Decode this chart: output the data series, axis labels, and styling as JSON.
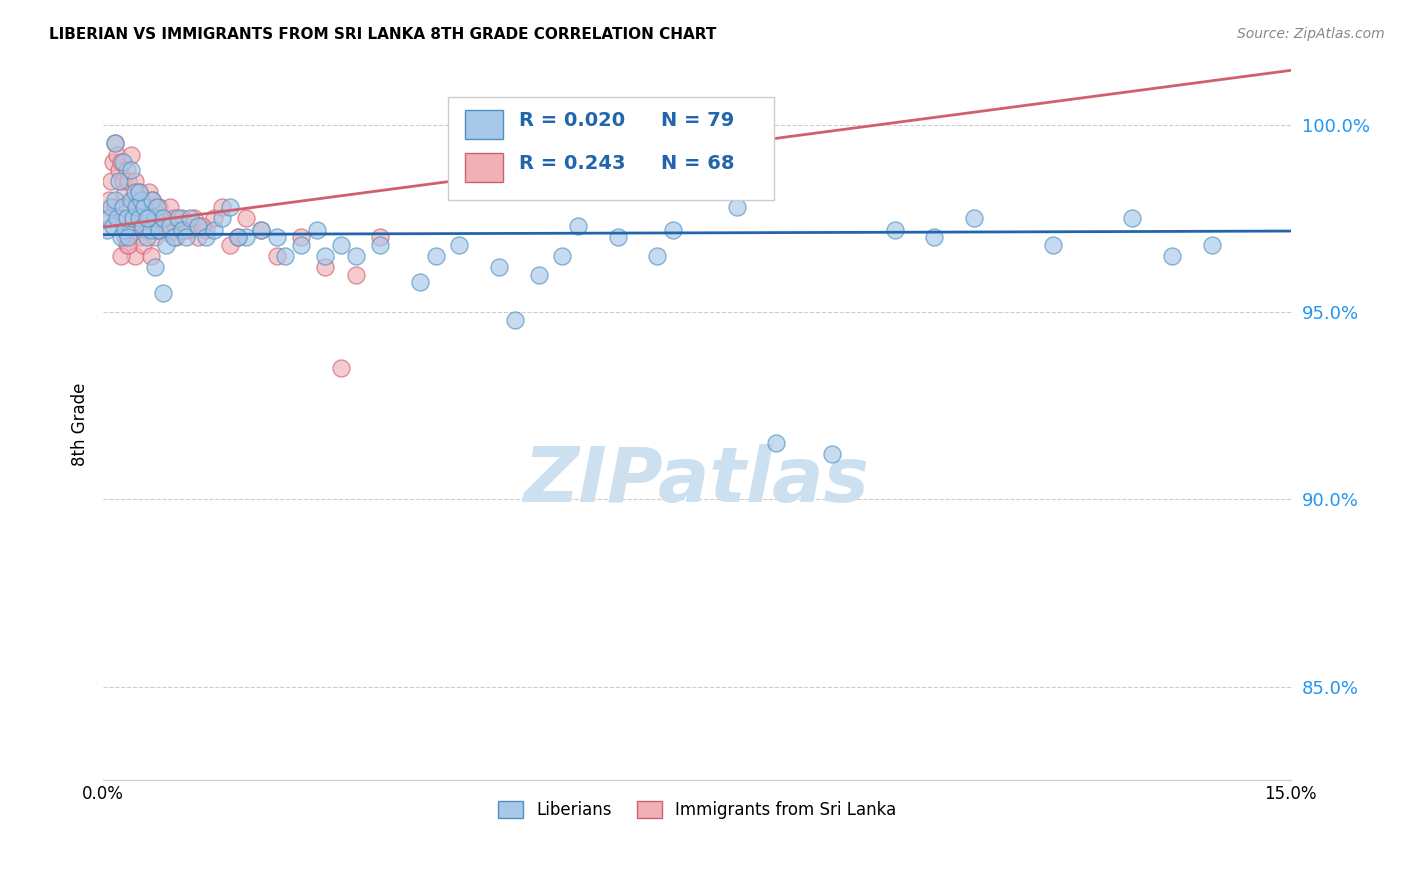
{
  "title": "LIBERIAN VS IMMIGRANTS FROM SRI LANKA 8TH GRADE CORRELATION CHART",
  "source": "Source: ZipAtlas.com",
  "ylabel": "8th Grade",
  "yticks": [
    85.0,
    90.0,
    95.0,
    100.0
  ],
  "xlim": [
    0.0,
    15.0
  ],
  "ylim": [
    82.5,
    101.5
  ],
  "legend_label1": "Liberians",
  "legend_label2": "Immigrants from Sri Lanka",
  "color_blue": "#a8c8e8",
  "color_pink": "#f0b0b8",
  "edge_blue": "#5090c0",
  "edge_pink": "#d06070",
  "trendline_blue": "#2166ac",
  "trendline_pink": "#d06070",
  "blue_x": [
    0.05,
    0.08,
    0.1,
    0.12,
    0.15,
    0.18,
    0.2,
    0.22,
    0.25,
    0.28,
    0.3,
    0.32,
    0.35,
    0.38,
    0.4,
    0.42,
    0.45,
    0.48,
    0.5,
    0.52,
    0.55,
    0.58,
    0.6,
    0.62,
    0.65,
    0.68,
    0.7,
    0.75,
    0.8,
    0.85,
    0.9,
    0.95,
    1.0,
    1.05,
    1.1,
    1.2,
    1.3,
    1.4,
    1.5,
    1.6,
    1.8,
    2.0,
    2.2,
    2.5,
    2.8,
    3.0,
    3.2,
    3.5,
    4.0,
    4.2,
    4.5,
    5.0,
    5.2,
    5.5,
    5.8,
    6.0,
    6.5,
    7.0,
    7.2,
    8.0,
    8.5,
    9.2,
    10.0,
    10.5,
    11.0,
    12.0,
    13.0,
    13.5,
    14.0,
    1.7,
    2.3,
    2.7,
    0.15,
    0.25,
    0.35,
    0.45,
    0.55,
    0.65,
    0.75
  ],
  "blue_y": [
    97.2,
    97.5,
    97.8,
    97.3,
    98.0,
    97.5,
    98.5,
    97.0,
    97.8,
    97.2,
    97.5,
    97.0,
    98.0,
    97.5,
    98.2,
    97.8,
    97.5,
    98.0,
    97.3,
    97.8,
    97.0,
    97.5,
    97.2,
    98.0,
    97.5,
    97.8,
    97.2,
    97.5,
    96.8,
    97.3,
    97.0,
    97.5,
    97.2,
    97.0,
    97.5,
    97.3,
    97.0,
    97.2,
    97.5,
    97.8,
    97.0,
    97.2,
    97.0,
    96.8,
    96.5,
    96.8,
    96.5,
    96.8,
    95.8,
    96.5,
    96.8,
    96.2,
    94.8,
    96.0,
    96.5,
    97.3,
    97.0,
    96.5,
    97.2,
    97.8,
    91.5,
    91.2,
    97.2,
    97.0,
    97.5,
    96.8,
    97.5,
    96.5,
    96.8,
    97.0,
    96.5,
    97.2,
    99.5,
    99.0,
    98.8,
    98.2,
    97.5,
    96.2,
    95.5
  ],
  "pink_x": [
    0.05,
    0.08,
    0.1,
    0.12,
    0.15,
    0.18,
    0.2,
    0.22,
    0.25,
    0.28,
    0.3,
    0.32,
    0.35,
    0.38,
    0.4,
    0.42,
    0.45,
    0.48,
    0.5,
    0.52,
    0.55,
    0.58,
    0.6,
    0.62,
    0.65,
    0.7,
    0.75,
    0.8,
    0.85,
    0.9,
    0.95,
    1.0,
    1.1,
    1.2,
    1.3,
    1.4,
    1.5,
    1.6,
    1.7,
    1.8,
    2.0,
    2.2,
    2.5,
    2.8,
    3.0,
    3.2,
    0.3,
    0.35,
    0.4,
    0.45,
    0.5,
    0.55,
    0.6,
    0.65,
    0.68,
    0.72,
    0.78,
    0.85,
    0.92,
    1.05,
    1.15,
    1.25,
    3.5,
    0.15,
    0.25,
    0.22,
    0.28,
    0.32
  ],
  "pink_y": [
    97.5,
    98.0,
    98.5,
    99.0,
    99.5,
    99.2,
    98.8,
    99.0,
    98.5,
    98.2,
    98.8,
    98.5,
    99.2,
    98.0,
    98.5,
    97.8,
    98.2,
    97.5,
    98.0,
    97.8,
    97.5,
    98.2,
    97.8,
    98.0,
    97.5,
    97.8,
    97.5,
    97.2,
    97.8,
    97.5,
    97.2,
    97.5,
    97.2,
    97.0,
    97.2,
    97.5,
    97.8,
    96.8,
    97.0,
    97.5,
    97.2,
    96.5,
    97.0,
    96.2,
    93.5,
    96.0,
    96.8,
    97.2,
    96.5,
    97.0,
    96.8,
    97.2,
    96.5,
    97.0,
    97.2,
    97.5,
    97.3,
    97.1,
    97.0,
    97.2,
    97.5,
    97.3,
    97.0,
    97.8,
    97.5,
    96.5,
    97.0,
    96.8
  ],
  "watermark": "ZIPatlas",
  "watermark_color": "#cce0f0"
}
